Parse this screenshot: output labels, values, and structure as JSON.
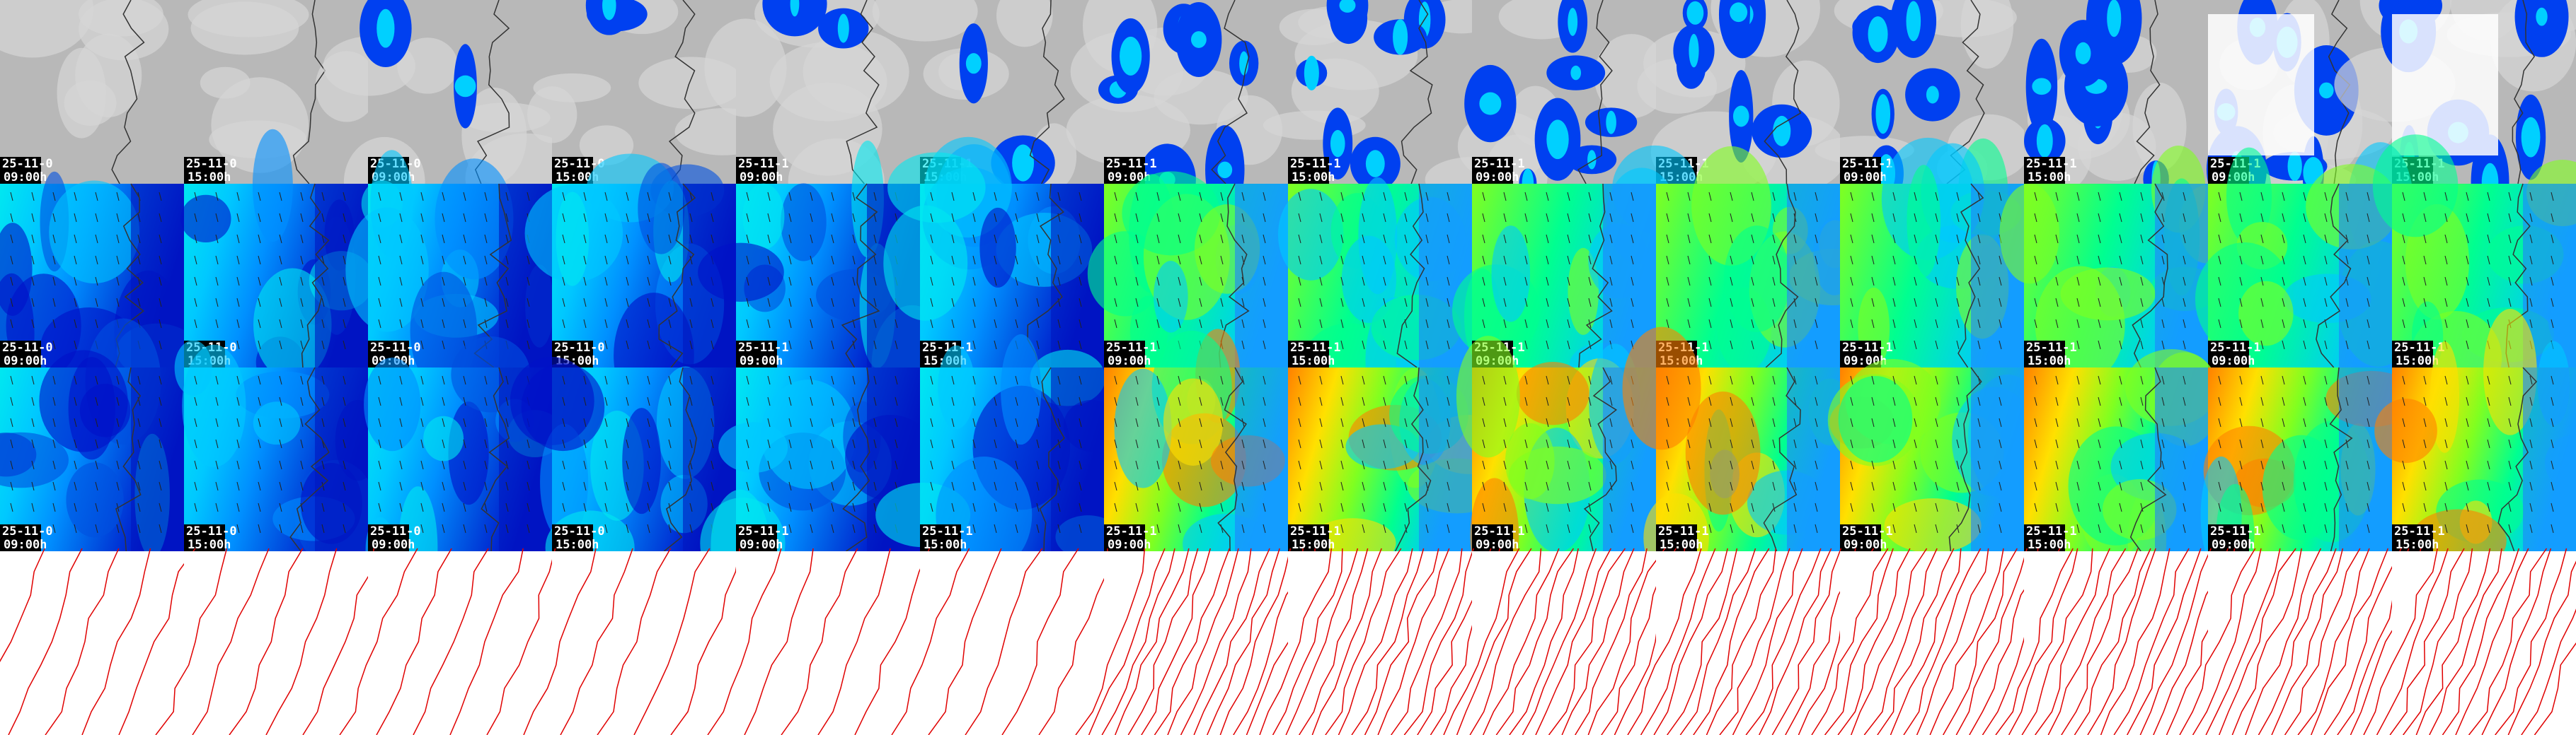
{
  "rows": [
    {
      "tiles": [
        {
          "date": "25-11-0",
          "time": "09:00h"
        },
        {
          "date": "25-11-0",
          "time": "15:00h"
        },
        {
          "date": "25-11-0",
          "time": "09:00h"
        },
        {
          "date": "25-11-0",
          "time": "15:00h"
        },
        {
          "date": "25-11-1",
          "time": "09:00h"
        },
        {
          "date": "25-11-1",
          "time": "15:00h"
        },
        {
          "date": "25-11-1",
          "time": "09:00h"
        },
        {
          "date": "25-11-1",
          "time": "15:00h"
        },
        {
          "date": "25-11-1",
          "time": "09:00h"
        },
        {
          "date": "25-11-1",
          "time": "15:00h"
        },
        {
          "date": "25-11-1",
          "time": "09:00h"
        },
        {
          "date": "25-11-1",
          "time": "15:00h"
        },
        {
          "date": "25-11-1",
          "time": "09:00h"
        },
        {
          "date": "25-11-1",
          "time": "15:00h"
        }
      ]
    },
    {
      "tiles": [
        {
          "date": "25-11-0",
          "time": "09:00h"
        },
        {
          "date": "25-11-0",
          "time": "15:00h"
        },
        {
          "date": "25-11-0",
          "time": "09:00h"
        },
        {
          "date": "25-11-0",
          "time": "15:00h"
        },
        {
          "date": "25-11-1",
          "time": "09:00h"
        },
        {
          "date": "25-11-1",
          "time": "15:00h"
        },
        {
          "date": "25-11-1",
          "time": "09:00h"
        },
        {
          "date": "25-11-1",
          "time": "15:00h"
        },
        {
          "date": "25-11-1",
          "time": "09:00h"
        },
        {
          "date": "25-11-1",
          "time": "15:00h"
        },
        {
          "date": "25-11-1",
          "time": "09:00h"
        },
        {
          "date": "25-11-1",
          "time": "15:00h"
        },
        {
          "date": "25-11-1",
          "time": "09:00h"
        },
        {
          "date": "25-11-1",
          "time": "15:00h"
        }
      ]
    },
    {
      "tiles": [
        {
          "date": "25-11-0",
          "time": "09:00h"
        },
        {
          "date": "25-11-0",
          "time": "15:00h"
        },
        {
          "date": "25-11-0",
          "time": "09:00h"
        },
        {
          "date": "25-11-0",
          "time": "15:00h"
        },
        {
          "date": "25-11-1",
          "time": "09:00h"
        },
        {
          "date": "25-11-1",
          "time": "15:00h"
        },
        {
          "date": "25-11-1",
          "time": "09:00h"
        },
        {
          "date": "25-11-1",
          "time": "15:00h"
        },
        {
          "date": "25-11-1",
          "time": "09:00h"
        },
        {
          "date": "25-11-1",
          "time": "15:00h"
        },
        {
          "date": "25-11-1",
          "time": "09:00h"
        },
        {
          "date": "25-11-1",
          "time": "15:00h"
        },
        {
          "date": "25-11-1",
          "time": "09:00h"
        },
        {
          "date": "25-11-1",
          "time": "15:00h"
        }
      ]
    }
  ]
}
